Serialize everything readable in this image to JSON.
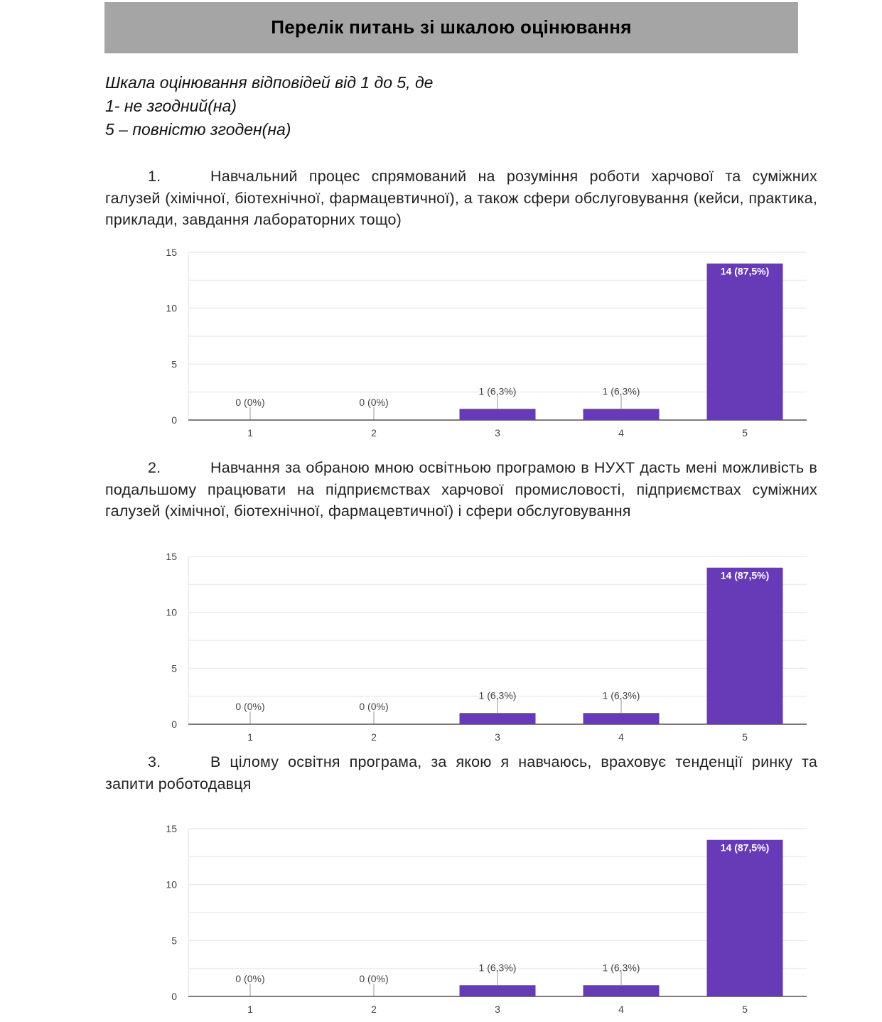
{
  "title": "Перелік питань зі шкалою оцінювання",
  "scale": {
    "line1": "Шкала оцінювання відповідей від 1 до 5, де",
    "line2": "1- не згодний(на)",
    "line3": "5 – повністю згоден(на)"
  },
  "questions": [
    {
      "number": "1.",
      "text": "Навчальний процес спрямований на розуміння роботи харчової та суміжних галузей (хімічної, біотехнічної, фармацевтичної), а також сфери обслуговування (кейси, практика, приклади, завдання лабораторних тощо)"
    },
    {
      "number": "2.",
      "text": "Навчання за обраною мною освітньою програмою в НУХТ дасть мені можливість в подальшому працювати на підприємствах харчової промисловості, підприємствах суміжних галузей (хімічної, біотехнічної, фармацевтичної) і сфери обслуговування"
    },
    {
      "number": "3.",
      "text": "В цілому освітня програма, за якою я навчаюсь, враховує тенденції ринку та запити роботодавця"
    }
  ],
  "colors": {
    "bar": "#673ab7",
    "grid": "#ececec",
    "axis": "#555555",
    "label": "#444444"
  },
  "chart_data": [
    {
      "type": "bar",
      "title": "",
      "xlabel": "",
      "ylabel": "",
      "ylim": [
        0,
        15
      ],
      "yticks": [
        "0",
        "5",
        "10",
        "15"
      ],
      "grid": true,
      "categories": [
        "1",
        "2",
        "3",
        "4",
        "5"
      ],
      "values": [
        0,
        0,
        1,
        1,
        14
      ],
      "labels": [
        "0 (0%)",
        "0 (0%)",
        "1 (6,3%)",
        "1 (6,3%)",
        "14 (87,5%)"
      ]
    },
    {
      "type": "bar",
      "title": "",
      "xlabel": "",
      "ylabel": "",
      "ylim": [
        0,
        15
      ],
      "yticks": [
        "0",
        "5",
        "10",
        "15"
      ],
      "grid": true,
      "categories": [
        "1",
        "2",
        "3",
        "4",
        "5"
      ],
      "values": [
        0,
        0,
        1,
        1,
        14
      ],
      "labels": [
        "0 (0%)",
        "0 (0%)",
        "1 (6,3%)",
        "1 (6,3%)",
        "14 (87,5%)"
      ]
    },
    {
      "type": "bar",
      "title": "",
      "xlabel": "",
      "ylabel": "",
      "ylim": [
        0,
        15
      ],
      "yticks": [
        "0",
        "5",
        "10",
        "15"
      ],
      "grid": true,
      "categories": [
        "1",
        "2",
        "3",
        "4",
        "5"
      ],
      "values": [
        0,
        0,
        1,
        1,
        14
      ],
      "labels": [
        "0 (0%)",
        "0 (0%)",
        "1 (6,3%)",
        "1 (6,3%)",
        "14 (87,5%)"
      ]
    }
  ]
}
